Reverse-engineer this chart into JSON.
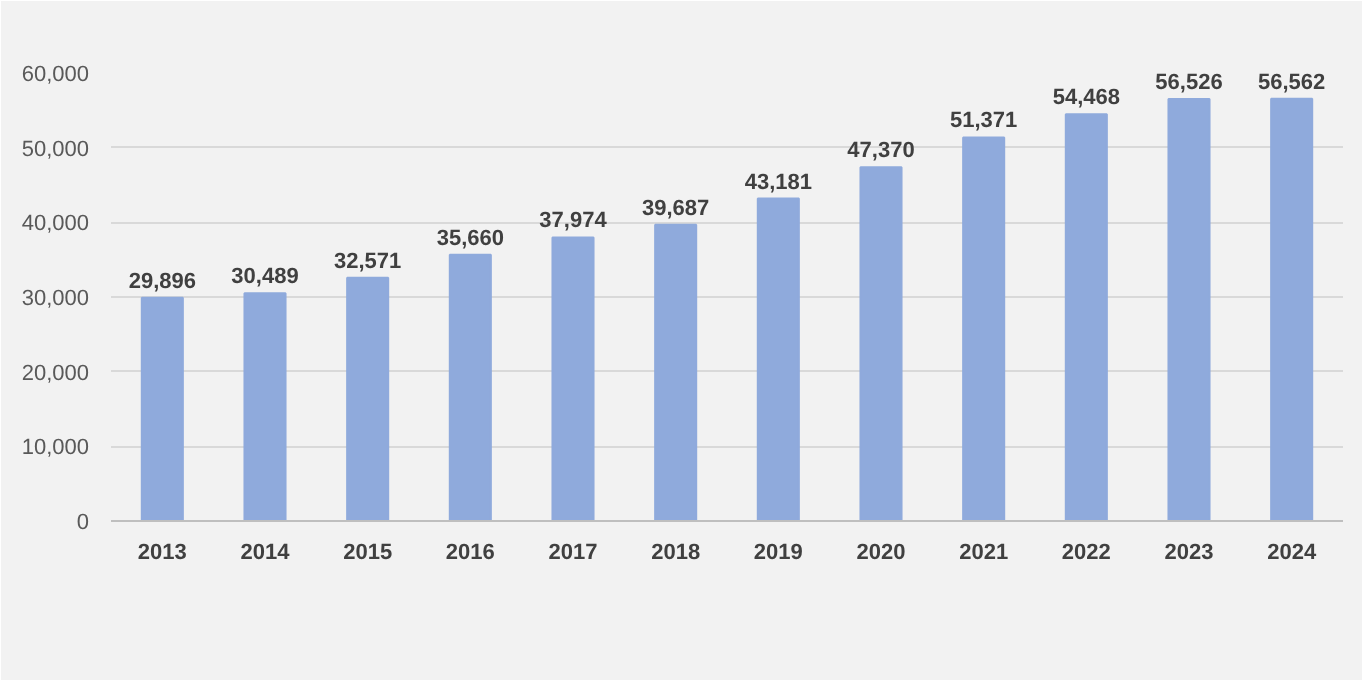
{
  "chart_data": {
    "type": "bar",
    "categories": [
      "2013",
      "2014",
      "2015",
      "2016",
      "2017",
      "2018",
      "2019",
      "2020",
      "2021",
      "2022",
      "2023",
      "2024"
    ],
    "values": [
      29896,
      30489,
      32571,
      35660,
      37974,
      39687,
      43181,
      47370,
      51371,
      54468,
      56526,
      56562
    ],
    "color": "#8faadc",
    "ylim": [
      0,
      60000
    ],
    "yticks": [
      {
        "value": 0,
        "label": "0"
      },
      {
        "value": 10000,
        "label": "10,000"
      },
      {
        "value": 20000,
        "label": "20,000"
      },
      {
        "value": 30000,
        "label": "30,000"
      },
      {
        "value": 40000,
        "label": "40,000"
      },
      {
        "value": 50000,
        "label": "50,000"
      },
      {
        "value": 60000,
        "label": "60,000"
      }
    ],
    "value_labels": [
      "29,896",
      "30,489",
      "32,571",
      "35,660",
      "37,974",
      "39,687",
      "43,181",
      "47,370",
      "51,371",
      "54,468",
      "56,526",
      "56,562"
    ],
    "grid": "y"
  }
}
